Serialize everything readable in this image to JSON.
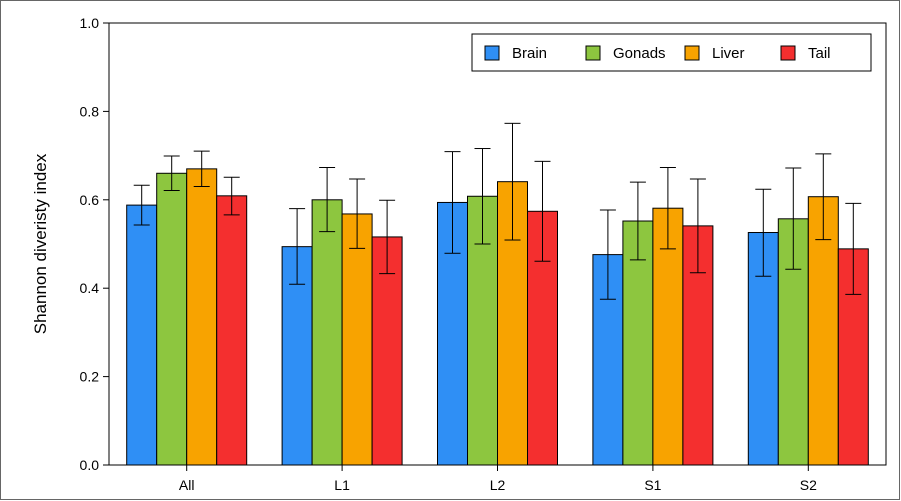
{
  "chart_data": {
    "type": "bar",
    "title": "",
    "xlabel": "",
    "ylabel": "Shannon diveristy index",
    "ylim": [
      0,
      1.0
    ],
    "yticks": [
      "0.0",
      "0.2",
      "0.4",
      "0.6",
      "0.8",
      "1.0"
    ],
    "categories": [
      "All",
      "L1",
      "L2",
      "S1",
      "S2"
    ],
    "grid": false,
    "legend_position": "top-right",
    "error_bars": true,
    "series": [
      {
        "name": "Brain",
        "color": "#2f8ff5",
        "values": [
          0.588,
          0.494,
          0.594,
          0.476,
          0.526
        ],
        "err_low": [
          0.543,
          0.409,
          0.479,
          0.375,
          0.427
        ],
        "err_high": [
          0.633,
          0.58,
          0.709,
          0.577,
          0.624
        ]
      },
      {
        "name": "Gonads",
        "color": "#8dc63f",
        "values": [
          0.66,
          0.6,
          0.608,
          0.552,
          0.557
        ],
        "err_low": [
          0.621,
          0.528,
          0.5,
          0.464,
          0.443
        ],
        "err_high": [
          0.699,
          0.673,
          0.716,
          0.64,
          0.672
        ]
      },
      {
        "name": "Liver",
        "color": "#f8a300",
        "values": [
          0.67,
          0.568,
          0.641,
          0.581,
          0.607
        ],
        "err_low": [
          0.63,
          0.49,
          0.509,
          0.489,
          0.51
        ],
        "err_high": [
          0.71,
          0.647,
          0.773,
          0.673,
          0.704
        ]
      },
      {
        "name": "Tail",
        "color": "#f42f2f",
        "values": [
          0.609,
          0.516,
          0.574,
          0.541,
          0.489
        ],
        "err_low": [
          0.566,
          0.433,
          0.461,
          0.435,
          0.386
        ],
        "err_high": [
          0.651,
          0.599,
          0.687,
          0.647,
          0.592
        ]
      }
    ]
  }
}
